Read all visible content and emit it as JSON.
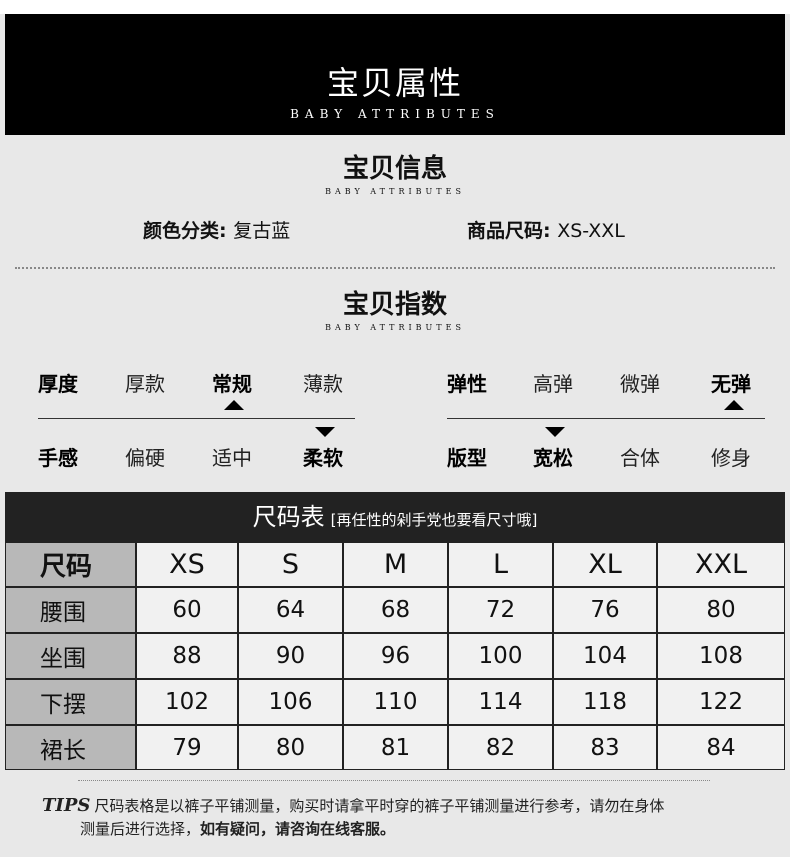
{
  "header": {
    "title": "宝贝属性",
    "subtitle": "BABY ATTRIBUTES"
  },
  "info": {
    "title": "宝贝信息",
    "subtitle": "BABY ATTRIBUTES",
    "color_label": "颜色分类:",
    "color_value": "复古蓝",
    "size_label": "商品尺码:",
    "size_value": "XS-XXL"
  },
  "index": {
    "title": "宝贝指数",
    "subtitle": "BABY ATTRIBUTES",
    "thickness": [
      "厚度",
      "厚款",
      "常规",
      "薄款"
    ],
    "elasticity": [
      "弹性",
      "高弹",
      "微弹",
      "无弹"
    ],
    "feel": [
      "手感",
      "偏硬",
      "适中",
      "柔软"
    ],
    "fit": [
      "版型",
      "宽松",
      "合体",
      "修身"
    ],
    "selected": {
      "thickness": "常规",
      "elasticity": "无弹",
      "feel": "柔软",
      "fit": "宽松"
    }
  },
  "size_table": {
    "title": "尺码表",
    "note": "[再任性的剁手党也要看尺寸哦]",
    "header": [
      "尺码",
      "XS",
      "S",
      "M",
      "L",
      "XL",
      "XXL"
    ],
    "rows": [
      [
        "腰围",
        "60",
        "64",
        "68",
        "72",
        "76",
        "80"
      ],
      [
        "坐围",
        "88",
        "90",
        "96",
        "100",
        "104",
        "108"
      ],
      [
        "下摆",
        "102",
        "106",
        "110",
        "114",
        "118",
        "122"
      ],
      [
        "裙长",
        "79",
        "80",
        "81",
        "82",
        "83",
        "84"
      ]
    ]
  },
  "tips": {
    "label": "TIPS",
    "line1": "尺码表格是以裤子平铺测量，购买时请拿平时穿的裤子平铺测量进行参考，请勿在身体",
    "line2a": "测量后进行选择，",
    "line2b": "如有疑问，请咨询在线客服。"
  }
}
